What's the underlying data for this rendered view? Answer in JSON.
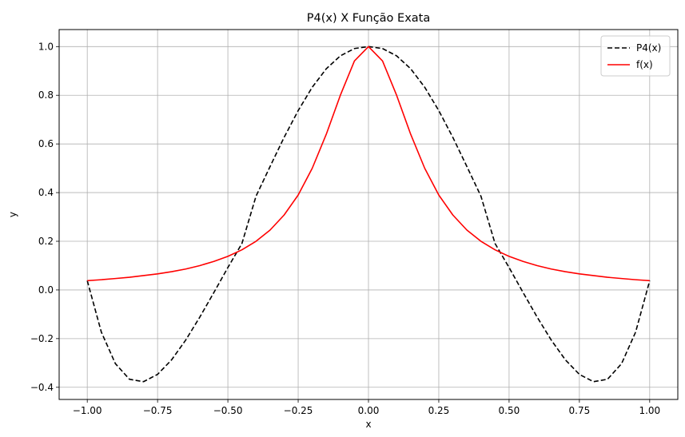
{
  "chart_data": {
    "type": "line",
    "title": "P4(x) X Função Exata",
    "xlabel": "x",
    "ylabel": "y",
    "xlim": [
      -1.1,
      1.1
    ],
    "ylim": [
      -0.45,
      1.07
    ],
    "xticks": [
      -1.0,
      -0.75,
      -0.5,
      -0.25,
      0.0,
      0.25,
      0.5,
      0.75,
      1.0
    ],
    "xtick_labels": [
      "−1.00",
      "−0.75",
      "−0.50",
      "−0.25",
      "0.00",
      "0.25",
      "0.50",
      "0.75",
      "1.00"
    ],
    "yticks": [
      -0.4,
      -0.2,
      0.0,
      0.2,
      0.4,
      0.6,
      0.8,
      1.0
    ],
    "ytick_labels": [
      "−0.4",
      "−0.2",
      "0.0",
      "0.2",
      "0.4",
      "0.6",
      "0.8",
      "1.0"
    ],
    "grid": true,
    "legend_position": "upper right",
    "series": [
      {
        "name": "P4(x)",
        "color": "#000000",
        "linestyle": "dashed",
        "x": [
          -1.0,
          -0.95,
          -0.9,
          -0.85,
          -0.8,
          -0.75,
          -0.7,
          -0.65,
          -0.6,
          -0.55,
          -0.5,
          -0.45,
          -0.4,
          -0.35,
          -0.3,
          -0.25,
          -0.2,
          -0.15,
          -0.1,
          -0.05,
          0.0,
          0.05,
          0.1,
          0.15,
          0.2,
          0.25,
          0.3,
          0.35,
          0.4,
          0.45,
          0.5,
          0.55,
          0.6,
          0.65,
          0.7,
          0.75,
          0.8,
          0.85,
          0.9,
          0.95,
          1.0
        ],
        "y": [
          0.038,
          -0.173,
          -0.303,
          -0.367,
          -0.377,
          -0.347,
          -0.287,
          -0.206,
          -0.112,
          -0.011,
          0.092,
          0.191,
          0.385,
          0.507,
          0.627,
          0.737,
          0.833,
          0.909,
          0.962,
          0.992,
          1.0,
          0.992,
          0.962,
          0.909,
          0.833,
          0.737,
          0.627,
          0.507,
          0.385,
          0.191,
          0.092,
          -0.011,
          -0.112,
          -0.206,
          -0.287,
          -0.347,
          -0.377,
          -0.367,
          -0.303,
          -0.173,
          0.038
        ]
      },
      {
        "name": "f(x)",
        "color": "#ff0000",
        "linestyle": "solid",
        "x": [
          -1.0,
          -0.95,
          -0.9,
          -0.85,
          -0.8,
          -0.75,
          -0.7,
          -0.65,
          -0.6,
          -0.55,
          -0.5,
          -0.45,
          -0.4,
          -0.35,
          -0.3,
          -0.25,
          -0.2,
          -0.15,
          -0.1,
          -0.05,
          0.0,
          0.05,
          0.1,
          0.15,
          0.2,
          0.25,
          0.3,
          0.35,
          0.4,
          0.45,
          0.5,
          0.55,
          0.6,
          0.65,
          0.7,
          0.75,
          0.8,
          0.85,
          0.9,
          0.95,
          1.0
        ],
        "y": [
          0.038,
          0.042,
          0.047,
          0.052,
          0.059,
          0.066,
          0.075,
          0.086,
          0.1,
          0.117,
          0.138,
          0.165,
          0.2,
          0.246,
          0.308,
          0.39,
          0.5,
          0.64,
          0.8,
          0.941,
          1.0,
          0.941,
          0.8,
          0.64,
          0.5,
          0.39,
          0.308,
          0.246,
          0.2,
          0.165,
          0.138,
          0.117,
          0.1,
          0.086,
          0.075,
          0.066,
          0.059,
          0.052,
          0.047,
          0.042,
          0.038
        ]
      }
    ]
  }
}
